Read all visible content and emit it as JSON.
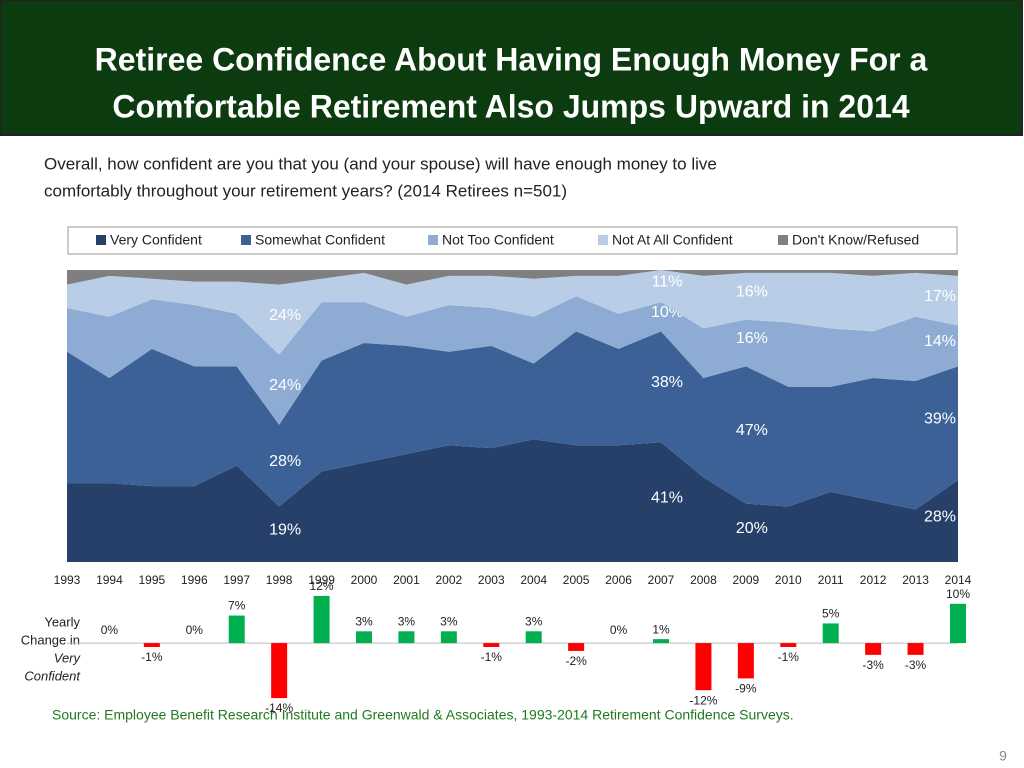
{
  "slide": {
    "title": [
      "Retiree Confidence About Having Enough Money For  a",
      "Comfortable Retirement Also Jumps Upward in 2014"
    ],
    "subtitle": [
      "Overall, how confident are you that you (and your spouse) will have enough money to live",
      "comfortably throughout your retirement years? (2014 Retirees n=501)"
    ],
    "source": "Source:  Employee Benefit Research Institute and Greenwald & Associates, 1993-2014 Retirement Confidence Surveys.",
    "page_number": "9"
  },
  "chart_data": [
    {
      "type": "stacked-area",
      "x": [
        1993,
        1994,
        1995,
        1996,
        1997,
        1998,
        1999,
        2000,
        2001,
        2002,
        2003,
        2004,
        2005,
        2006,
        2007,
        2008,
        2009,
        2010,
        2011,
        2012,
        2013,
        2014
      ],
      "xlim": [
        1993,
        2014
      ],
      "ylim": [
        0,
        100
      ],
      "legend": "top",
      "series": [
        {
          "name": "Very Confident",
          "color": "#26406a",
          "values": [
            27,
            27,
            26,
            26,
            33,
            19,
            31,
            34,
            37,
            40,
            39,
            42,
            40,
            40,
            41,
            29,
            20,
            19,
            24,
            21,
            18,
            28
          ],
          "value_labels": [
            null,
            null,
            null,
            null,
            null,
            "19%",
            null,
            null,
            null,
            null,
            null,
            null,
            null,
            null,
            "41%",
            null,
            "20%",
            null,
            null,
            null,
            null,
            "28%"
          ]
        },
        {
          "name": "Somewhat Confident",
          "color": "#3b6197",
          "values": [
            45,
            36,
            47,
            41,
            34,
            28,
            38,
            41,
            37,
            32,
            35,
            26,
            39,
            33,
            38,
            34,
            47,
            41,
            36,
            42,
            44,
            39
          ],
          "value_labels": [
            null,
            null,
            null,
            null,
            null,
            "28%",
            null,
            null,
            null,
            null,
            null,
            null,
            null,
            null,
            "38%",
            null,
            "47%",
            null,
            null,
            null,
            null,
            "39%"
          ]
        },
        {
          "name": "Not Too Confident",
          "color": "#8eabd4",
          "values": [
            15,
            21,
            17,
            21,
            18,
            24,
            20,
            14,
            10,
            16,
            13,
            16,
            12,
            12,
            10,
            17,
            16,
            22,
            20,
            16,
            22,
            14
          ],
          "value_labels": [
            null,
            null,
            null,
            null,
            null,
            "24%",
            null,
            null,
            null,
            null,
            null,
            null,
            null,
            null,
            "10%",
            null,
            "16%",
            null,
            null,
            null,
            null,
            "14%"
          ]
        },
        {
          "name": "Not At All Confident",
          "color": "#bacde7",
          "values": [
            8,
            14,
            7,
            8,
            11,
            24,
            8,
            10,
            11,
            10,
            11,
            13,
            7,
            13,
            11,
            18,
            16,
            17,
            19,
            19,
            15,
            17
          ],
          "value_labels": [
            null,
            null,
            null,
            null,
            null,
            "24%",
            null,
            null,
            null,
            null,
            null,
            null,
            null,
            null,
            "11%",
            null,
            "16%",
            null,
            null,
            null,
            null,
            "17%"
          ]
        },
        {
          "name": "Don't Know/Refused",
          "color": "#7f7f7f",
          "values": [
            5,
            2,
            3,
            4,
            4,
            5,
            3,
            1,
            5,
            2,
            2,
            3,
            2,
            2,
            0,
            2,
            1,
            1,
            1,
            2,
            1,
            2
          ]
        }
      ]
    },
    {
      "type": "bar",
      "ylabel": [
        "Yearly",
        "Change in",
        "Very",
        "Confident"
      ],
      "ylim": [
        -15,
        13
      ],
      "positive_color": "#00b050",
      "negative_color": "#ff0000",
      "values": [
        null,
        0,
        -1,
        0,
        7,
        -14,
        12,
        3,
        3,
        3,
        -1,
        3,
        -2,
        0,
        1,
        -12,
        -9,
        -1,
        5,
        -3,
        -3,
        10
      ],
      "value_labels": [
        null,
        "0%",
        "-1%",
        "0%",
        "7%",
        "-14%",
        "12%",
        "3%",
        "3%",
        "3%",
        "-1%",
        "3%",
        "-2%",
        "0%",
        "1%",
        "-12%",
        "-9%",
        "-1%",
        "5%",
        "-3%",
        "-3%",
        "10%"
      ]
    }
  ]
}
